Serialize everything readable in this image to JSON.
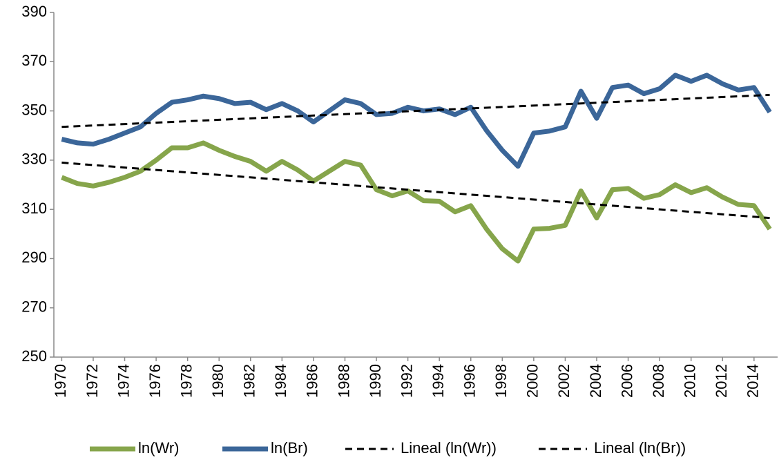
{
  "chart_data": {
    "type": "line",
    "x": [
      1970,
      1971,
      1972,
      1973,
      1974,
      1975,
      1976,
      1977,
      1978,
      1979,
      1980,
      1981,
      1982,
      1983,
      1984,
      1985,
      1986,
      1987,
      1988,
      1989,
      1990,
      1991,
      1992,
      1993,
      1994,
      1995,
      1996,
      1997,
      1998,
      1999,
      2000,
      2001,
      2002,
      2003,
      2004,
      2005,
      2006,
      2007,
      2008,
      2009,
      2010,
      2011,
      2012,
      2013,
      2014,
      2015
    ],
    "xlim": [
      1969.5,
      2015.5
    ],
    "xticks": [
      1970,
      1972,
      1974,
      1976,
      1978,
      1980,
      1982,
      1984,
      1986,
      1988,
      1990,
      1992,
      1994,
      1996,
      1998,
      2000,
      2002,
      2004,
      2006,
      2008,
      2010,
      2012,
      2014
    ],
    "ylim": [
      250,
      390
    ],
    "yticks": [
      250,
      270,
      290,
      310,
      330,
      350,
      370,
      390
    ],
    "grid": false,
    "legend": "bottom",
    "series": [
      {
        "name": "ln(Wr)",
        "color": "#86a54b",
        "line_style": "solid",
        "values": [
          323,
          320.5,
          319.5,
          321,
          323,
          325.5,
          330,
          335,
          335,
          337,
          334,
          331.5,
          329.5,
          325.5,
          329.5,
          326,
          321.5,
          325.5,
          329.5,
          328,
          318,
          315.5,
          317.5,
          313.5,
          313.3,
          309,
          311.5,
          302,
          294,
          289,
          302,
          302.3,
          303.5,
          317.5,
          306.5,
          318,
          318.5,
          314.5,
          316,
          320,
          316.8,
          318.8,
          315,
          312,
          311.5,
          302
        ]
      },
      {
        "name": "ln(Br)",
        "color": "#3b6699",
        "line_style": "solid",
        "values": [
          338.5,
          337,
          336.5,
          338.5,
          341,
          343.5,
          349,
          353.5,
          354.5,
          356,
          355,
          353,
          353.5,
          350.5,
          353,
          350,
          345.5,
          350,
          354.5,
          353,
          348.5,
          349,
          351.5,
          350,
          350.8,
          348.5,
          351.5,
          342,
          334,
          327.5,
          341,
          341.8,
          343.5,
          358,
          347,
          359.5,
          360.5,
          357,
          359,
          364.5,
          362,
          364.5,
          361,
          358.5,
          359.5,
          349.5
        ]
      },
      {
        "name": "Lineal (ln(Wr))",
        "color": "#000000",
        "line_style": "dashed",
        "x": [
          1970,
          2015
        ],
        "values": [
          329,
          306.5
        ]
      },
      {
        "name": "Lineal (ln(Br))",
        "color": "#000000",
        "line_style": "dashed",
        "x": [
          1970,
          2015
        ],
        "values": [
          343.5,
          356.5
        ]
      }
    ]
  }
}
